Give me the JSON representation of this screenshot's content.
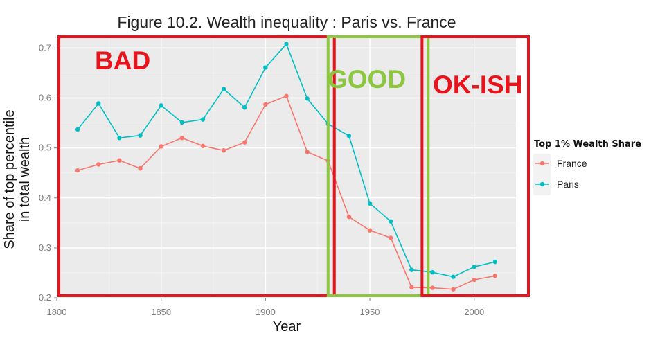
{
  "chart_data": {
    "type": "line",
    "title": "Figure 10.2. Wealth inequality : Paris vs. France",
    "xlabel": "Year",
    "ylabel": [
      "Share of top percentile",
      "in total wealth"
    ],
    "xlim": [
      1800,
      2020
    ],
    "ylim": [
      0.2,
      0.72
    ],
    "xticks": [
      1800,
      1850,
      1900,
      1950,
      2000
    ],
    "yticks": [
      0.2,
      0.3,
      0.4,
      0.5,
      0.6,
      0.7
    ],
    "xtick_labels": [
      "1800",
      "1850",
      "1900",
      "1950",
      "2000"
    ],
    "ytick_labels": [
      "0.2",
      "0.3",
      "0.4",
      "0.5",
      "0.6",
      "0.7"
    ],
    "grid": true,
    "legend": {
      "title": "Top 1% Wealth Share",
      "placement": "right"
    },
    "series": [
      {
        "name": "France",
        "color": "#F8766D",
        "x": [
          1810,
          1820,
          1830,
          1840,
          1850,
          1860,
          1870,
          1880,
          1890,
          1900,
          1910,
          1920,
          1930,
          1940,
          1950,
          1960,
          1970,
          1980,
          1990,
          2000,
          2010
        ],
        "y": [
          0.455,
          0.467,
          0.475,
          0.459,
          0.503,
          0.52,
          0.504,
          0.495,
          0.511,
          0.587,
          0.604,
          0.492,
          0.474,
          0.362,
          0.335,
          0.32,
          0.221,
          0.22,
          0.217,
          0.236,
          0.244
        ]
      },
      {
        "name": "Paris",
        "color": "#00BFC4",
        "x": [
          1810,
          1820,
          1830,
          1840,
          1850,
          1860,
          1870,
          1880,
          1890,
          1900,
          1910,
          1920,
          1930,
          1940,
          1950,
          1960,
          1970,
          1980,
          1990,
          2000,
          2010
        ],
        "y": [
          0.537,
          0.589,
          0.52,
          0.525,
          0.585,
          0.551,
          0.557,
          0.618,
          0.581,
          0.661,
          0.708,
          0.599,
          0.548,
          0.524,
          0.389,
          0.353,
          0.256,
          0.251,
          0.242,
          0.262,
          0.272
        ]
      }
    ],
    "annotations": [
      {
        "label": "BAD",
        "color": "#e8131b",
        "x_range": [
          1800,
          1927
        ]
      },
      {
        "label": "GOOD",
        "color": "#8dc63f",
        "x_range": [
          1929,
          1972
        ]
      },
      {
        "label": "OK-ISH",
        "color": "#e8131b",
        "x_range": [
          1974,
          2020
        ]
      }
    ]
  }
}
